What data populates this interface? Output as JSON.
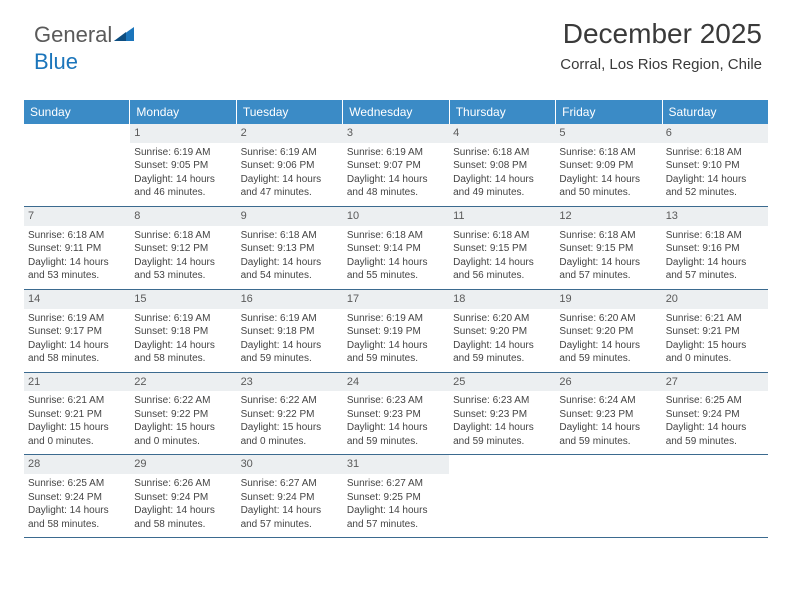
{
  "logo": {
    "text1": "General",
    "text2": "Blue"
  },
  "header": {
    "month_title": "December 2025",
    "location": "Corral, Los Rios Region, Chile"
  },
  "colors": {
    "header_bg": "#3b8bc6",
    "header_text": "#ffffff",
    "daynum_bg": "#eceff1",
    "week_border": "#3b6a8f",
    "body_text": "#444444",
    "title_text": "#3a3a3a"
  },
  "day_labels": [
    "Sunday",
    "Monday",
    "Tuesday",
    "Wednesday",
    "Thursday",
    "Friday",
    "Saturday"
  ],
  "weeks": [
    [
      {
        "blank": true
      },
      {
        "n": "1",
        "sr": "Sunrise: 6:19 AM",
        "ss": "Sunset: 9:05 PM",
        "dl": "Daylight: 14 hours and 46 minutes."
      },
      {
        "n": "2",
        "sr": "Sunrise: 6:19 AM",
        "ss": "Sunset: 9:06 PM",
        "dl": "Daylight: 14 hours and 47 minutes."
      },
      {
        "n": "3",
        "sr": "Sunrise: 6:19 AM",
        "ss": "Sunset: 9:07 PM",
        "dl": "Daylight: 14 hours and 48 minutes."
      },
      {
        "n": "4",
        "sr": "Sunrise: 6:18 AM",
        "ss": "Sunset: 9:08 PM",
        "dl": "Daylight: 14 hours and 49 minutes."
      },
      {
        "n": "5",
        "sr": "Sunrise: 6:18 AM",
        "ss": "Sunset: 9:09 PM",
        "dl": "Daylight: 14 hours and 50 minutes."
      },
      {
        "n": "6",
        "sr": "Sunrise: 6:18 AM",
        "ss": "Sunset: 9:10 PM",
        "dl": "Daylight: 14 hours and 52 minutes."
      }
    ],
    [
      {
        "n": "7",
        "sr": "Sunrise: 6:18 AM",
        "ss": "Sunset: 9:11 PM",
        "dl": "Daylight: 14 hours and 53 minutes."
      },
      {
        "n": "8",
        "sr": "Sunrise: 6:18 AM",
        "ss": "Sunset: 9:12 PM",
        "dl": "Daylight: 14 hours and 53 minutes."
      },
      {
        "n": "9",
        "sr": "Sunrise: 6:18 AM",
        "ss": "Sunset: 9:13 PM",
        "dl": "Daylight: 14 hours and 54 minutes."
      },
      {
        "n": "10",
        "sr": "Sunrise: 6:18 AM",
        "ss": "Sunset: 9:14 PM",
        "dl": "Daylight: 14 hours and 55 minutes."
      },
      {
        "n": "11",
        "sr": "Sunrise: 6:18 AM",
        "ss": "Sunset: 9:15 PM",
        "dl": "Daylight: 14 hours and 56 minutes."
      },
      {
        "n": "12",
        "sr": "Sunrise: 6:18 AM",
        "ss": "Sunset: 9:15 PM",
        "dl": "Daylight: 14 hours and 57 minutes."
      },
      {
        "n": "13",
        "sr": "Sunrise: 6:18 AM",
        "ss": "Sunset: 9:16 PM",
        "dl": "Daylight: 14 hours and 57 minutes."
      }
    ],
    [
      {
        "n": "14",
        "sr": "Sunrise: 6:19 AM",
        "ss": "Sunset: 9:17 PM",
        "dl": "Daylight: 14 hours and 58 minutes."
      },
      {
        "n": "15",
        "sr": "Sunrise: 6:19 AM",
        "ss": "Sunset: 9:18 PM",
        "dl": "Daylight: 14 hours and 58 minutes."
      },
      {
        "n": "16",
        "sr": "Sunrise: 6:19 AM",
        "ss": "Sunset: 9:18 PM",
        "dl": "Daylight: 14 hours and 59 minutes."
      },
      {
        "n": "17",
        "sr": "Sunrise: 6:19 AM",
        "ss": "Sunset: 9:19 PM",
        "dl": "Daylight: 14 hours and 59 minutes."
      },
      {
        "n": "18",
        "sr": "Sunrise: 6:20 AM",
        "ss": "Sunset: 9:20 PM",
        "dl": "Daylight: 14 hours and 59 minutes."
      },
      {
        "n": "19",
        "sr": "Sunrise: 6:20 AM",
        "ss": "Sunset: 9:20 PM",
        "dl": "Daylight: 14 hours and 59 minutes."
      },
      {
        "n": "20",
        "sr": "Sunrise: 6:21 AM",
        "ss": "Sunset: 9:21 PM",
        "dl": "Daylight: 15 hours and 0 minutes."
      }
    ],
    [
      {
        "n": "21",
        "sr": "Sunrise: 6:21 AM",
        "ss": "Sunset: 9:21 PM",
        "dl": "Daylight: 15 hours and 0 minutes."
      },
      {
        "n": "22",
        "sr": "Sunrise: 6:22 AM",
        "ss": "Sunset: 9:22 PM",
        "dl": "Daylight: 15 hours and 0 minutes."
      },
      {
        "n": "23",
        "sr": "Sunrise: 6:22 AM",
        "ss": "Sunset: 9:22 PM",
        "dl": "Daylight: 15 hours and 0 minutes."
      },
      {
        "n": "24",
        "sr": "Sunrise: 6:23 AM",
        "ss": "Sunset: 9:23 PM",
        "dl": "Daylight: 14 hours and 59 minutes."
      },
      {
        "n": "25",
        "sr": "Sunrise: 6:23 AM",
        "ss": "Sunset: 9:23 PM",
        "dl": "Daylight: 14 hours and 59 minutes."
      },
      {
        "n": "26",
        "sr": "Sunrise: 6:24 AM",
        "ss": "Sunset: 9:23 PM",
        "dl": "Daylight: 14 hours and 59 minutes."
      },
      {
        "n": "27",
        "sr": "Sunrise: 6:25 AM",
        "ss": "Sunset: 9:24 PM",
        "dl": "Daylight: 14 hours and 59 minutes."
      }
    ],
    [
      {
        "n": "28",
        "sr": "Sunrise: 6:25 AM",
        "ss": "Sunset: 9:24 PM",
        "dl": "Daylight: 14 hours and 58 minutes."
      },
      {
        "n": "29",
        "sr": "Sunrise: 6:26 AM",
        "ss": "Sunset: 9:24 PM",
        "dl": "Daylight: 14 hours and 58 minutes."
      },
      {
        "n": "30",
        "sr": "Sunrise: 6:27 AM",
        "ss": "Sunset: 9:24 PM",
        "dl": "Daylight: 14 hours and 57 minutes."
      },
      {
        "n": "31",
        "sr": "Sunrise: 6:27 AM",
        "ss": "Sunset: 9:25 PM",
        "dl": "Daylight: 14 hours and 57 minutes."
      },
      {
        "blank": true
      },
      {
        "blank": true
      },
      {
        "blank": true
      }
    ]
  ]
}
